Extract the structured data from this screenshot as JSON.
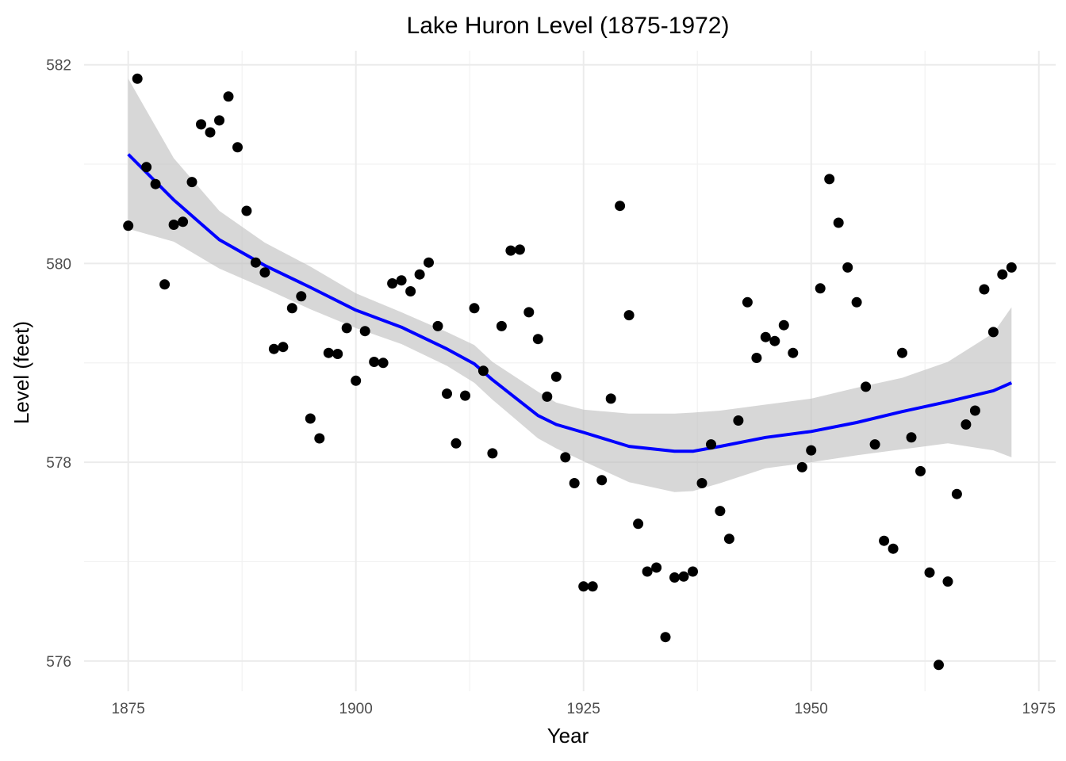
{
  "chart_data": {
    "type": "scatter",
    "title": "Lake Huron Level (1875-1972)",
    "xlabel": "Year",
    "ylabel": "Level (feet)",
    "xlim": [
      1870.15,
      1976.85
    ],
    "ylim": [
      575.6955,
      582.1415
    ],
    "x_ticks": [
      1875,
      1900,
      1925,
      1950,
      1975
    ],
    "x_tick_labels": [
      "1875",
      "1900",
      "1925",
      "1950",
      "1975"
    ],
    "y_ticks": [
      576,
      578,
      580,
      582
    ],
    "y_tick_labels": [
      "576",
      "578",
      "580",
      "582"
    ],
    "grid": true,
    "legend": "none",
    "colors": {
      "points": "#000000",
      "smooth_line": "#0000ff",
      "ribbon": "#bfbfbf"
    },
    "points": {
      "x": [
        1875,
        1876,
        1877,
        1878,
        1879,
        1880,
        1881,
        1882,
        1883,
        1884,
        1885,
        1886,
        1887,
        1888,
        1889,
        1890,
        1891,
        1892,
        1893,
        1894,
        1895,
        1896,
        1897,
        1898,
        1899,
        1900,
        1901,
        1902,
        1903,
        1904,
        1905,
        1906,
        1907,
        1908,
        1909,
        1910,
        1911,
        1912,
        1913,
        1914,
        1915,
        1916,
        1917,
        1918,
        1919,
        1920,
        1921,
        1922,
        1923,
        1924,
        1925,
        1926,
        1927,
        1928,
        1929,
        1930,
        1931,
        1932,
        1933,
        1934,
        1935,
        1936,
        1937,
        1938,
        1939,
        1940,
        1941,
        1942,
        1943,
        1944,
        1945,
        1946,
        1947,
        1948,
        1949,
        1950,
        1951,
        1952,
        1953,
        1954,
        1955,
        1956,
        1957,
        1958,
        1959,
        1960,
        1961,
        1962,
        1963,
        1964,
        1965,
        1966,
        1967,
        1968,
        1969,
        1970,
        1971,
        1972
      ],
      "y": [
        580.38,
        581.86,
        580.97,
        580.8,
        579.79,
        580.39,
        580.42,
        580.82,
        581.4,
        581.32,
        581.44,
        581.68,
        581.17,
        580.53,
        580.01,
        579.91,
        579.14,
        579.16,
        579.55,
        579.67,
        578.44,
        578.24,
        579.1,
        579.09,
        579.35,
        578.82,
        579.32,
        579.01,
        579.0,
        579.8,
        579.83,
        579.72,
        579.89,
        580.01,
        579.37,
        578.69,
        578.19,
        578.67,
        579.55,
        578.92,
        578.09,
        579.37,
        580.13,
        580.14,
        579.51,
        579.24,
        578.66,
        578.86,
        578.05,
        577.79,
        576.75,
        576.75,
        577.82,
        578.64,
        580.58,
        579.48,
        577.38,
        576.9,
        576.94,
        576.24,
        576.84,
        576.85,
        576.9,
        577.79,
        578.18,
        577.51,
        577.23,
        578.42,
        579.61,
        579.05,
        579.26,
        579.22,
        579.38,
        579.1,
        577.95,
        578.12,
        579.75,
        580.85,
        580.41,
        579.96,
        579.61,
        578.76,
        578.18,
        577.21,
        577.13,
        579.1,
        578.25,
        577.91,
        576.89,
        575.96,
        576.8,
        577.68,
        578.38,
        578.52,
        579.74,
        579.31,
        579.89,
        579.96
      ]
    },
    "smooth": {
      "x": [
        1875,
        1880,
        1885,
        1890,
        1895,
        1900,
        1905,
        1910,
        1913,
        1915,
        1920,
        1922,
        1925,
        1930,
        1935,
        1937,
        1940,
        1945,
        1950,
        1955,
        1960,
        1965,
        1970,
        1972
      ],
      "y": [
        581.1,
        580.64,
        580.24,
        579.98,
        579.76,
        579.53,
        579.36,
        579.14,
        578.99,
        578.83,
        578.47,
        578.38,
        578.3,
        578.16,
        578.11,
        578.11,
        578.16,
        578.25,
        578.31,
        578.4,
        578.51,
        578.61,
        578.72,
        578.8
      ],
      "upper": [
        581.86,
        581.06,
        580.53,
        580.21,
        579.97,
        579.7,
        579.51,
        579.31,
        579.18,
        579.01,
        578.71,
        578.6,
        578.53,
        578.49,
        578.49,
        578.5,
        578.52,
        578.58,
        578.64,
        578.75,
        578.85,
        579.01,
        579.3,
        579.56
      ],
      "lower": [
        580.35,
        580.22,
        579.95,
        579.75,
        579.54,
        579.35,
        579.19,
        578.97,
        578.8,
        578.63,
        578.24,
        578.14,
        578.01,
        577.8,
        577.7,
        577.71,
        577.79,
        577.94,
        578.0,
        578.07,
        578.13,
        578.19,
        578.12,
        578.05
      ]
    }
  }
}
